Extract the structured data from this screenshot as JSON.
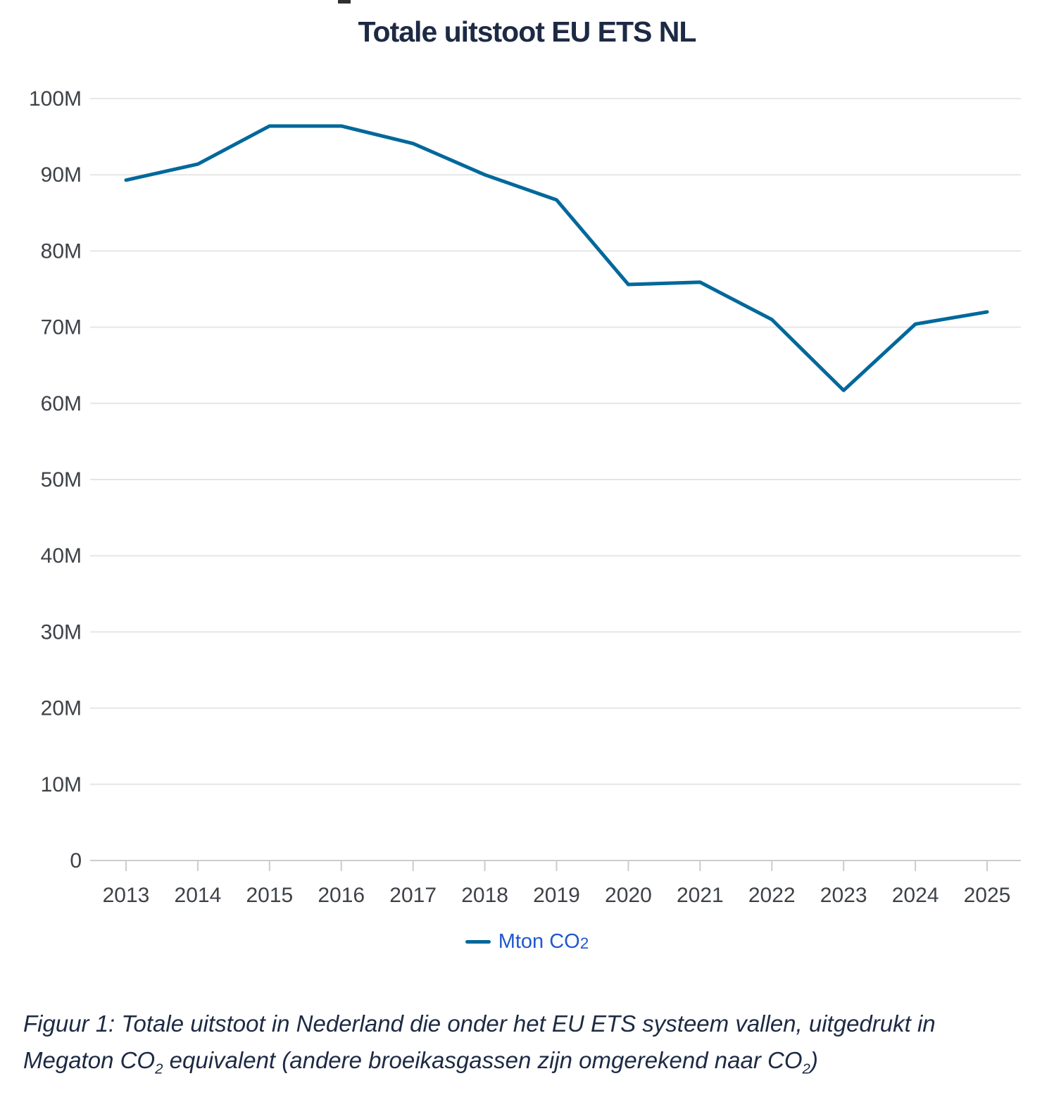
{
  "page": {
    "background": "#ffffff"
  },
  "chart_data": {
    "type": "line",
    "title": "Totale uitstoot EU ETS NL",
    "x": [
      2013,
      2014,
      2015,
      2016,
      2017,
      2018,
      2019,
      2020,
      2021,
      2022,
      2023,
      2024,
      2025
    ],
    "series": [
      {
        "name": "Mton CO2",
        "values": [
          89.3,
          91.4,
          96.4,
          96.4,
          94.1,
          90.0,
          86.7,
          75.6,
          75.9,
          71.0,
          61.7,
          70.4,
          72.0
        ]
      }
    ],
    "ylim": [
      0,
      100
    ],
    "yticks": [
      {
        "v": 0,
        "label": "0"
      },
      {
        "v": 10,
        "label": "10M"
      },
      {
        "v": 20,
        "label": "20M"
      },
      {
        "v": 30,
        "label": "30M"
      },
      {
        "v": 40,
        "label": "40M"
      },
      {
        "v": 50,
        "label": "50M"
      },
      {
        "v": 60,
        "label": "60M"
      },
      {
        "v": 70,
        "label": "70M"
      },
      {
        "v": 80,
        "label": "80M"
      },
      {
        "v": 90,
        "label": "90M"
      },
      {
        "v": 100,
        "label": "100M"
      }
    ],
    "xlabel": "",
    "ylabel": "",
    "grid": true,
    "legend_position": "bottom-center"
  },
  "legend": {
    "label_main": "Mton CO",
    "label_sub": "2"
  },
  "caption": {
    "line1": "Figuur 1: Totale uitstoot in Nederland die onder het EU ETS systeem vallen, uitgedrukt in",
    "l2_part1": "Megaton CO",
    "l2_sub1": "2",
    "l2_part2": " equivalent (andere broeikasgassen zijn omgerekend naar CO",
    "l2_sub2": "2",
    "l2_part3": ")"
  },
  "colors": {
    "line": "#01689b",
    "legend_text": "#2157d0",
    "title_text": "#1d2a44",
    "caption_text": "#1d2a44",
    "axis_text": "#3e4247",
    "grid": "#e6e6e6",
    "axis_line": "#cccccc",
    "background": "#ffffff"
  }
}
